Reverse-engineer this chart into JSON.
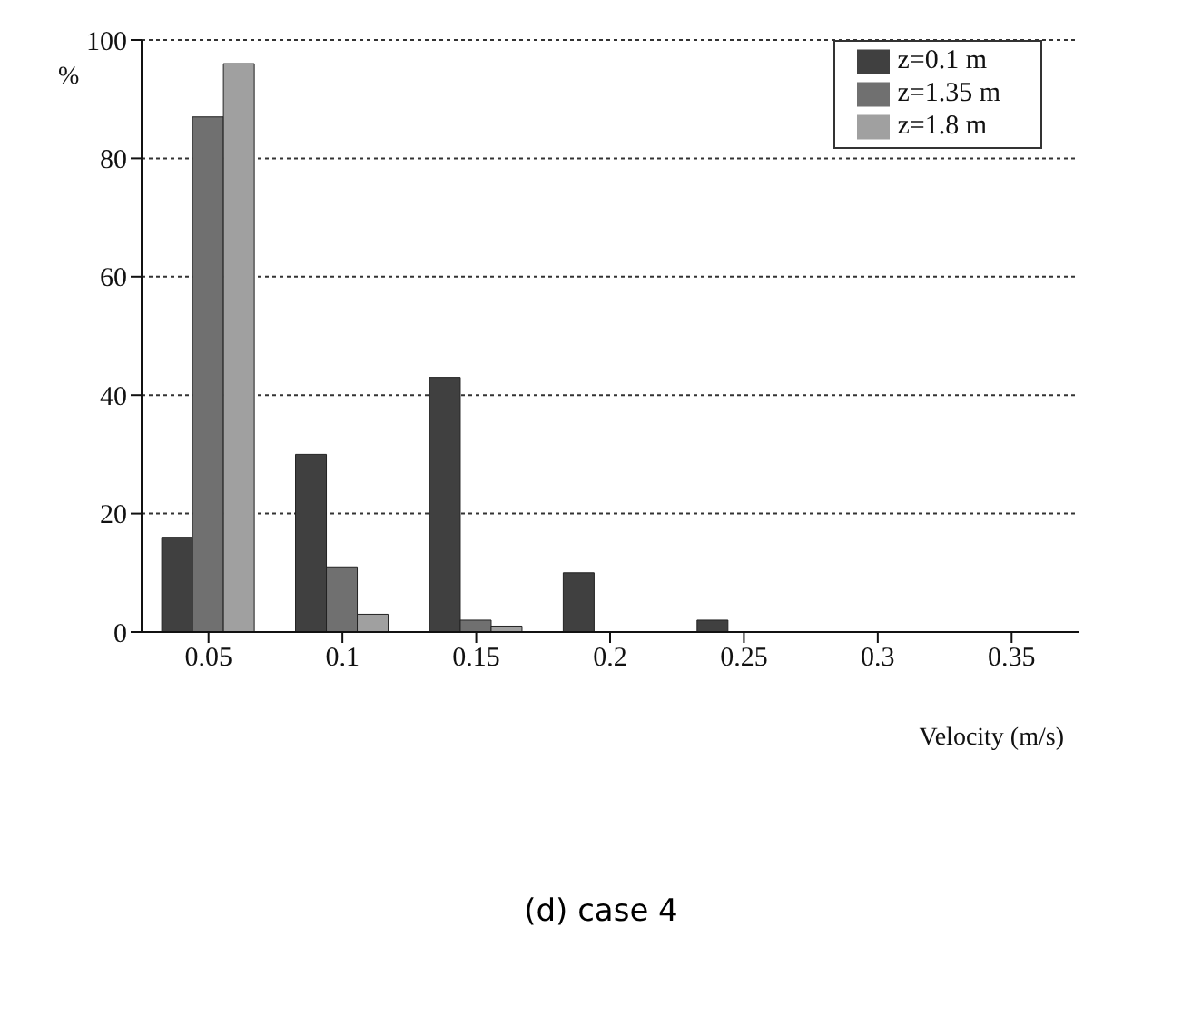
{
  "chart_data": {
    "type": "bar",
    "title": "(d) case 4",
    "xlabel": "Velocity (m/s)",
    "ylabel": "%",
    "categories": [
      "0.05",
      "0.1",
      "0.15",
      "0.2",
      "0.25",
      "0.3",
      "0.35"
    ],
    "series": [
      {
        "name": "z=0.1 m",
        "color": "#404040",
        "values": [
          16,
          30,
          43,
          10,
          2,
          0,
          0
        ]
      },
      {
        "name": "z=1.35 m",
        "color": "#707070",
        "values": [
          87,
          11,
          2,
          0,
          0,
          0,
          0
        ]
      },
      {
        "name": "z=1.8 m",
        "color": "#a0a0a0",
        "values": [
          96,
          3,
          1,
          0,
          0,
          0,
          0
        ]
      }
    ],
    "ylim": [
      0,
      100
    ],
    "yticks": [
      0,
      20,
      40,
      60,
      80,
      100
    ],
    "grid": "y",
    "legend": "top right"
  }
}
